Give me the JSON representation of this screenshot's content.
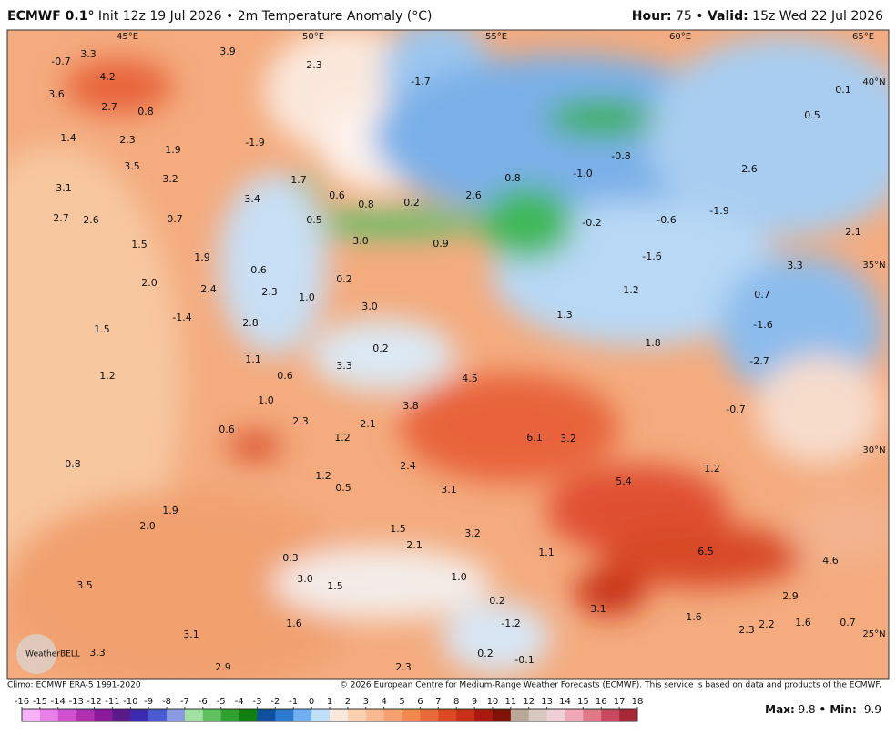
{
  "header": {
    "model": "ECMWF 0.1°",
    "info": "Init 12z 19 Jul 2026 • 2m Temperature Anomaly (°C)",
    "hour_label": "Hour:",
    "hour_value": "75 •",
    "valid_label": "Valid:",
    "valid_value": "15z Wed 22 Jul 2026"
  },
  "map": {
    "longitudes": [
      "45°E",
      "50°E",
      "55°E",
      "60°E",
      "65°E"
    ],
    "latitudes": [
      "40°N",
      "35°N",
      "30°N",
      "25°N"
    ],
    "anomaly_labels": [
      "-0.7",
      "3.3",
      "3.9",
      "2.3",
      "4.2",
      "3.6",
      "2.7",
      "0.8",
      "1.4",
      "2.3",
      "1.9",
      "-1.9",
      "3.5",
      "3.2",
      "1.7",
      "3.1",
      "3.4",
      "0.6",
      "0.8",
      "0.2",
      "2.6",
      "0.8",
      "-1.0",
      "-0.8",
      "2.6",
      "0.5",
      "0.1",
      "-1.7",
      "2.7",
      "2.6",
      "0.7",
      "0.5",
      "3.0",
      "0.9",
      "-0.2",
      "-0.6",
      "-1.9",
      "2.1",
      "1.5",
      "-1.6",
      "3.3",
      "1.9",
      "0.6",
      "2.0",
      "2.4",
      "2.3",
      "1.0",
      "0.2",
      "1.2",
      "0.7",
      "3.0",
      "1.3",
      "-1.4",
      "-1.6",
      "2.8",
      "1.5",
      "0.2",
      "1.8",
      "-2.7",
      "1.1",
      "3.3",
      "4.5",
      "0.6",
      "1.2",
      "1.0",
      "3.8",
      "-0.7",
      "2.3",
      "2.1",
      "0.6",
      "6.1",
      "3.2",
      "1.2",
      "0.8",
      "1.2",
      "2.4",
      "1.2",
      "5.4",
      "0.5",
      "3.1",
      "1.9",
      "2.0",
      "1.5",
      "3.2",
      "2.1",
      "6.5",
      "1.1",
      "4.6",
      "0.3",
      "3.5",
      "3.0",
      "1.5",
      "1.0",
      "0.2",
      "2.9",
      "3.1",
      "1.6",
      "1.6",
      "-1.2",
      "2.3",
      "2.2",
      "1.6",
      "0.7",
      "3.1",
      "3.3",
      "0.2",
      "-0.1",
      "2.3",
      "2.9"
    ],
    "logo": "WeatherBELL"
  },
  "footer": {
    "climo": "Climo: ECMWF ERA-5 1991-2020",
    "copyright": "© 2026 European Centre for Medium-Range Weather Forecasts (ECMWF). This service is based on data and products of the ECMWF.",
    "max_label": "Max:",
    "max": 9.8,
    "min_label": "• Min:",
    "min": -9.9
  },
  "colorbar": {
    "ticks": [
      -16,
      -15,
      -14,
      -13,
      -12,
      -11,
      -10,
      -9,
      -8,
      -7,
      -6,
      -5,
      -4,
      -3,
      -2,
      -1,
      0,
      1,
      2,
      3,
      4,
      5,
      6,
      7,
      8,
      9,
      10,
      11,
      12,
      13,
      14,
      15,
      16,
      17,
      18
    ],
    "colors": [
      "#f7b3f7",
      "#e880e8",
      "#d050d0",
      "#b030b0",
      "#8a1a9a",
      "#5a1a8a",
      "#3a2ab0",
      "#4a5ad0",
      "#8a9ae0",
      "#a0e0a0",
      "#60c060",
      "#30a030",
      "#108010",
      "#1050a0",
      "#2a7ad0",
      "#70b0f0",
      "#c0e0fa",
      "#fbe8dc",
      "#fad0b0",
      "#f8b890",
      "#f5a070",
      "#f08850",
      "#e86a3a",
      "#dc4a25",
      "#c83018",
      "#a81a10",
      "#801008",
      "#b8a898",
      "#d8c8c0",
      "#f0d0d8",
      "#f0a8b8",
      "#e07888",
      "#c84860",
      "#a82838"
    ]
  }
}
